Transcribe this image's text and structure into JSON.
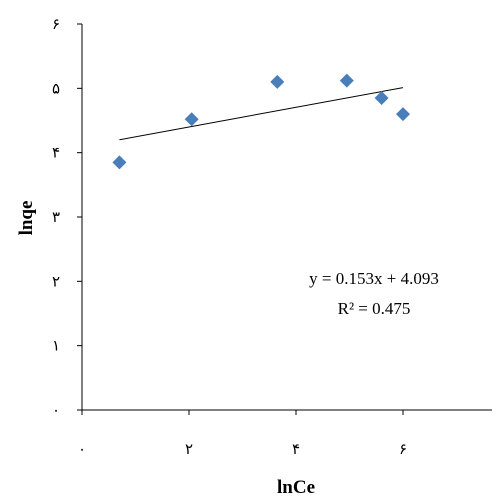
{
  "chart_data": {
    "type": "scatter",
    "title": "",
    "xlabel": "lnCe",
    "ylabel": "lnqe",
    "xlim": [
      0,
      8
    ],
    "ylim": [
      0,
      6
    ],
    "x_ticks": [
      0,
      2,
      4,
      6
    ],
    "x_tick_labels": [
      "٠",
      "٢",
      "۴",
      "۶"
    ],
    "y_ticks": [
      0,
      1,
      2,
      3,
      4,
      5,
      6
    ],
    "y_tick_labels": [
      "٠",
      "١",
      "٢",
      "٣",
      "۴",
      "۵",
      "۶"
    ],
    "grid": false,
    "legend": "none",
    "series": [
      {
        "marker": "diamond",
        "color": "#4a7ebb",
        "points": [
          {
            "x": 0.7,
            "y": 3.85
          },
          {
            "x": 2.05,
            "y": 4.52
          },
          {
            "x": 3.65,
            "y": 5.1
          },
          {
            "x": 4.95,
            "y": 5.12
          },
          {
            "x": 5.6,
            "y": 4.85
          },
          {
            "x": 6.0,
            "y": 4.6
          }
        ]
      }
    ],
    "trendline": {
      "type": "linear",
      "x_range": [
        0.7,
        6.0
      ],
      "slope": 0.153,
      "intercept": 4.093,
      "color": "#000000"
    },
    "annotations": {
      "equation": "y = 0.153x + 4.093",
      "r_squared": "R² = 0.475"
    }
  }
}
